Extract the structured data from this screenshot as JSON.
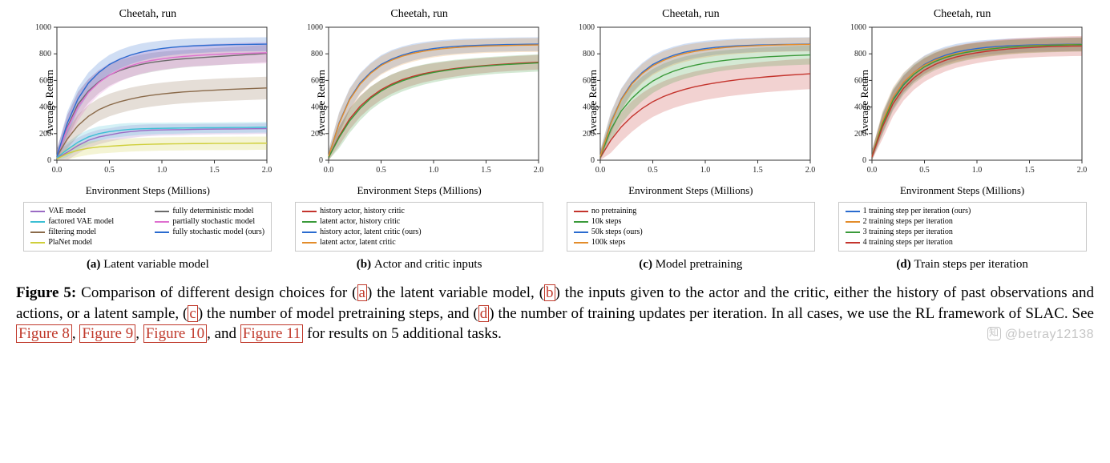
{
  "figure_label": "Figure 5:",
  "caption_lines": [
    "Comparison of different design choices for (",
    ") the latent variable model, (",
    ") the inputs given to the actor and the critic, either the history of past observations and actions, or a latent sample, (",
    ") the number of model pretraining steps, and (",
    ") the number of training updates per iteration. In all cases, we use the RL framework of SLAC. See "
  ],
  "caption_refs": {
    "a": "a",
    "b": "b",
    "c": "c",
    "d": "d"
  },
  "fig_refs": [
    "Figure 8",
    "Figure 9",
    "Figure 10",
    "Figure 11"
  ],
  "caption_tail": " for results on 5 additional tasks.",
  "watermark": "@betray12138",
  "shared": {
    "title": "Cheetah, run",
    "xlabel": "Environment Steps (Millions)",
    "ylabel": "Average Return",
    "xlim": [
      0,
      2.0
    ],
    "ylim": [
      0,
      1000
    ],
    "xticks": [
      0.0,
      0.5,
      1.0,
      1.5,
      2.0
    ],
    "xtick_labels": [
      "0.0",
      "0.5",
      "1.0",
      "1.5",
      "2.0"
    ],
    "yticks": [
      0,
      200,
      400,
      600,
      800,
      1000
    ],
    "grid_color": "none",
    "axis_color": "#333333",
    "tick_fontsize": 10,
    "label_fontsize": 13,
    "title_fontsize": 14,
    "band_opacity": 0.22,
    "line_width": 1.4
  },
  "panels": [
    {
      "id": "a",
      "sub_label": "(a)",
      "sub_text": "Latent variable model",
      "legend_two_col": true,
      "series": [
        {
          "label": "VAE model",
          "color": "#9b6bc4",
          "y": [
            15,
            60,
            110,
            150,
            175,
            190,
            205,
            215,
            222,
            226,
            228,
            229,
            230,
            232,
            233,
            234,
            235,
            235,
            236,
            237,
            238
          ],
          "band": [
            50,
            60,
            60,
            55,
            55,
            50,
            50,
            48,
            45,
            44,
            42,
            42,
            41,
            40,
            40,
            40,
            40,
            40,
            40,
            40,
            40
          ]
        },
        {
          "label": "factored VAE model",
          "color": "#3bbfd4",
          "y": [
            20,
            80,
            135,
            175,
            200,
            215,
            225,
            232,
            236,
            238,
            240,
            241,
            242,
            243,
            244,
            244,
            245,
            246,
            246,
            247,
            248
          ],
          "band": [
            48,
            55,
            55,
            55,
            55,
            50,
            50,
            48,
            45,
            44,
            42,
            42,
            41,
            40,
            40,
            40,
            40,
            40,
            40,
            40,
            40
          ]
        },
        {
          "label": "filtering model",
          "color": "#8a6a4a",
          "y": [
            30,
            160,
            260,
            330,
            380,
            415,
            440,
            460,
            476,
            488,
            498,
            506,
            513,
            518,
            523,
            527,
            531,
            534,
            537,
            540,
            543
          ],
          "band": [
            50,
            70,
            80,
            85,
            85,
            85,
            85,
            85,
            85,
            85,
            85,
            85,
            85,
            85,
            85,
            85,
            85,
            85,
            85,
            85,
            85
          ]
        },
        {
          "label": "PlaNet model",
          "color": "#cfcf3a",
          "y": [
            10,
            50,
            75,
            90,
            100,
            105,
            110,
            115,
            118,
            120,
            122,
            123,
            124,
            125,
            125,
            126,
            126,
            127,
            127,
            128,
            128
          ],
          "band": [
            35,
            45,
            50,
            50,
            50,
            50,
            50,
            50,
            50,
            50,
            50,
            50,
            50,
            50,
            50,
            50,
            50,
            50,
            50,
            50,
            50
          ]
        },
        {
          "label": "fully deterministic model",
          "color": "#6a6a6a",
          "y": [
            30,
            250,
            420,
            520,
            590,
            640,
            675,
            700,
            720,
            735,
            746,
            755,
            762,
            768,
            773,
            778,
            783,
            788,
            793,
            798,
            803
          ],
          "band": [
            50,
            90,
            95,
            90,
            85,
            80,
            78,
            76,
            74,
            72,
            70,
            68,
            66,
            65,
            65,
            65,
            65,
            65,
            65,
            65,
            65
          ]
        },
        {
          "label": "partially stochastic model",
          "color": "#df6fcf",
          "y": [
            30,
            240,
            400,
            510,
            585,
            640,
            680,
            710,
            733,
            750,
            762,
            772,
            780,
            786,
            791,
            795,
            799,
            802,
            804,
            806,
            808
          ],
          "band": [
            55,
            100,
            105,
            100,
            95,
            90,
            88,
            85,
            83,
            82,
            81,
            80,
            80,
            80,
            80,
            80,
            80,
            80,
            80,
            80,
            80
          ]
        },
        {
          "label": "fully stochastic model (ours)",
          "color": "#2a6bcf",
          "y": [
            30,
            280,
            460,
            580,
            660,
            720,
            760,
            790,
            812,
            828,
            840,
            849,
            855,
            860,
            863,
            866,
            868,
            870,
            871,
            872,
            873
          ],
          "band": [
            50,
            85,
            85,
            80,
            76,
            72,
            70,
            68,
            65,
            62,
            60,
            58,
            56,
            55,
            54,
            53,
            52,
            52,
            52,
            52,
            52
          ]
        }
      ]
    },
    {
      "id": "b",
      "sub_label": "(b)",
      "sub_text": "Actor and critic inputs",
      "legend_two_col": false,
      "series": [
        {
          "label": "history actor, history critic",
          "color": "#c4342d",
          "y": [
            20,
            180,
            310,
            405,
            475,
            530,
            572,
            605,
            630,
            650,
            665,
            678,
            689,
            698,
            706,
            713,
            719,
            724,
            729,
            733,
            737
          ],
          "band": [
            40,
            70,
            80,
            80,
            78,
            75,
            72,
            70,
            68,
            66,
            64,
            62,
            60,
            58,
            57,
            56,
            55,
            55,
            55,
            55,
            55
          ]
        },
        {
          "label": "latent actor, history critic",
          "color": "#3a9a3a",
          "y": [
            20,
            170,
            295,
            390,
            465,
            520,
            563,
            596,
            622,
            643,
            660,
            673,
            685,
            694,
            702,
            709,
            715,
            720,
            724,
            728,
            732
          ],
          "band": [
            45,
            80,
            90,
            90,
            88,
            85,
            82,
            80,
            78,
            76,
            74,
            72,
            70,
            68,
            67,
            66,
            65,
            65,
            65,
            65,
            65
          ]
        },
        {
          "label": "history actor, latent critic (ours)",
          "color": "#2a6bcf",
          "y": [
            30,
            280,
            460,
            580,
            660,
            720,
            760,
            790,
            812,
            828,
            840,
            849,
            855,
            860,
            863,
            866,
            868,
            870,
            871,
            872,
            873
          ],
          "band": [
            45,
            80,
            80,
            75,
            72,
            70,
            68,
            65,
            63,
            60,
            58,
            56,
            55,
            54,
            53,
            52,
            52,
            52,
            52,
            52,
            52
          ]
        },
        {
          "label": "latent actor, latent critic",
          "color": "#e38c2a",
          "y": [
            30,
            275,
            455,
            572,
            653,
            712,
            752,
            782,
            803,
            819,
            831,
            840,
            847,
            852,
            856,
            859,
            861,
            863,
            865,
            866,
            867
          ],
          "band": [
            45,
            80,
            80,
            75,
            72,
            70,
            68,
            65,
            63,
            60,
            58,
            56,
            55,
            54,
            53,
            52,
            52,
            52,
            52,
            52,
            52
          ]
        }
      ]
    },
    {
      "id": "c",
      "sub_label": "(c)",
      "sub_text": "Model pretraining",
      "legend_two_col": false,
      "series": [
        {
          "label": "no pretraining",
          "color": "#c4342d",
          "y": [
            20,
            150,
            250,
            328,
            390,
            440,
            478,
            508,
            532,
            552,
            568,
            582,
            594,
            604,
            613,
            621,
            628,
            634,
            640,
            645,
            650
          ],
          "band": [
            48,
            95,
            110,
            115,
            115,
            115,
            115,
            115,
            115,
            115,
            115,
            115,
            115,
            115,
            115,
            115,
            115,
            115,
            115,
            115,
            115
          ]
        },
        {
          "label": "10k steps",
          "color": "#3a9a3a",
          "y": [
            25,
            230,
            370,
            465,
            538,
            595,
            638,
            670,
            695,
            714,
            730,
            742,
            752,
            760,
            767,
            773,
            778,
            782,
            786,
            789,
            792
          ],
          "band": [
            45,
            85,
            95,
            95,
            92,
            90,
            88,
            86,
            84,
            82,
            80,
            78,
            76,
            75,
            74,
            73,
            72,
            72,
            72,
            72,
            72
          ]
        },
        {
          "label": "50k steps (ours)",
          "color": "#2a6bcf",
          "y": [
            30,
            280,
            460,
            580,
            660,
            720,
            760,
            790,
            812,
            828,
            840,
            849,
            855,
            860,
            863,
            866,
            868,
            870,
            871,
            872,
            873
          ],
          "band": [
            45,
            80,
            80,
            75,
            72,
            70,
            68,
            65,
            63,
            60,
            58,
            56,
            55,
            54,
            53,
            52,
            52,
            52,
            52,
            52,
            52
          ]
        },
        {
          "label": "100k steps",
          "color": "#e38c2a",
          "y": [
            30,
            275,
            455,
            572,
            652,
            710,
            750,
            780,
            802,
            818,
            830,
            840,
            848,
            854,
            858,
            862,
            865,
            867,
            869,
            870,
            871
          ],
          "band": [
            45,
            80,
            80,
            75,
            72,
            70,
            68,
            65,
            63,
            60,
            58,
            56,
            55,
            54,
            53,
            52,
            52,
            52,
            52,
            52,
            52
          ]
        }
      ]
    },
    {
      "id": "d",
      "sub_label": "(d)",
      "sub_text": "Train steps per iteration",
      "legend_two_col": false,
      "series": [
        {
          "label": "1 training step per iteration (ours)",
          "color": "#2a6bcf",
          "y": [
            30,
            280,
            460,
            580,
            660,
            720,
            760,
            790,
            812,
            828,
            840,
            849,
            855,
            860,
            863,
            866,
            868,
            870,
            871,
            872,
            873
          ],
          "band": [
            45,
            78,
            78,
            73,
            70,
            68,
            66,
            64,
            62,
            60,
            58,
            56,
            55,
            54,
            53,
            52,
            52,
            52,
            52,
            52,
            52
          ]
        },
        {
          "label": "2 training steps per iteration",
          "color": "#e38c2a",
          "y": [
            30,
            290,
            470,
            585,
            660,
            715,
            753,
            780,
            800,
            816,
            828,
            838,
            846,
            852,
            857,
            861,
            864,
            866,
            868,
            870,
            871
          ],
          "band": [
            45,
            78,
            78,
            73,
            70,
            68,
            66,
            64,
            62,
            60,
            58,
            56,
            55,
            54,
            53,
            52,
            52,
            52,
            52,
            52,
            52
          ]
        },
        {
          "label": "3 training steps per iteration",
          "color": "#3a9a3a",
          "y": [
            28,
            270,
            450,
            565,
            646,
            702,
            742,
            772,
            794,
            811,
            824,
            834,
            842,
            849,
            854,
            858,
            861,
            864,
            866,
            868,
            869
          ],
          "band": [
            45,
            78,
            78,
            73,
            70,
            68,
            66,
            64,
            62,
            60,
            58,
            56,
            55,
            54,
            53,
            52,
            52,
            52,
            52,
            52,
            52
          ]
        },
        {
          "label": "4 training steps per iteration",
          "color": "#c4342d",
          "y": [
            25,
            250,
            425,
            540,
            620,
            678,
            720,
            752,
            776,
            794,
            808,
            820,
            829,
            837,
            843,
            847,
            851,
            854,
            856,
            858,
            859
          ],
          "band": [
            50,
            90,
            95,
            92,
            90,
            88,
            86,
            84,
            82,
            80,
            78,
            77,
            76,
            75,
            75,
            75,
            75,
            75,
            75,
            75,
            75
          ]
        }
      ]
    }
  ]
}
